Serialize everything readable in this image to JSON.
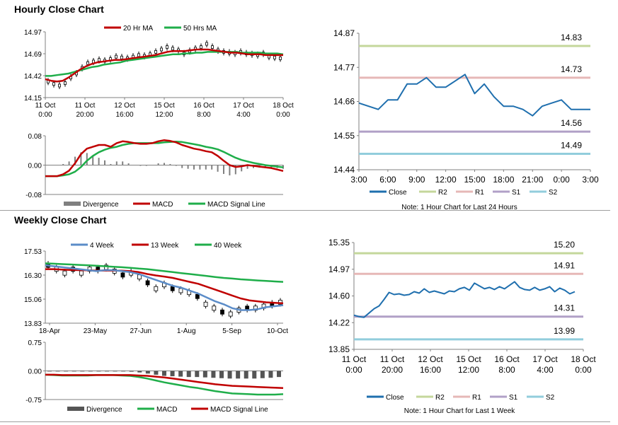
{
  "sections": {
    "hourly_title": "Hourly Close Chart",
    "weekly_title": "Weekly Close Chart"
  },
  "colors": {
    "close": "#1F6FAE",
    "ma_red": "#C00000",
    "ma_green": "#1FAE4A",
    "r2": "#C4D79B",
    "r1": "#E6B8B7",
    "s1": "#B1A0C7",
    "s2": "#92CDDC",
    "divergence": "#808080",
    "gray_candle": "#000000",
    "axis": "#808080",
    "divider": "#9E9E9E"
  },
  "chart_data": [
    {
      "id": "hourly_price",
      "type": "line",
      "legend": [
        "20 Hr MA",
        "50 Hrs MA"
      ],
      "ylim": [
        14.15,
        14.97
      ],
      "yticks": [
        "14.97",
        "14.69",
        "14.42",
        "14.15"
      ],
      "xticks": [
        [
          "11 Oct",
          "0:00"
        ],
        [
          "11 Oct",
          "20:00"
        ],
        [
          "12 Oct",
          "16:00"
        ],
        [
          "15 Oct",
          "12:00"
        ],
        [
          "16 Oct",
          "8:00"
        ],
        [
          "17 Oct",
          "4:00"
        ],
        [
          "18 Oct",
          "0:00"
        ]
      ],
      "series": [
        {
          "name": "Close",
          "values": [
            14.35,
            14.32,
            14.3,
            14.33,
            14.4,
            14.45,
            14.52,
            14.58,
            14.6,
            14.62,
            14.61,
            14.63,
            14.66,
            14.65,
            14.64,
            14.66,
            14.68,
            14.67,
            14.69,
            14.72,
            14.75,
            14.78,
            14.76,
            14.74,
            14.7,
            14.73,
            14.76,
            14.78,
            14.82,
            14.78,
            14.74,
            14.72,
            14.71,
            14.7,
            14.72,
            14.7,
            14.69,
            14.68,
            14.7,
            14.66,
            14.65,
            14.64
          ]
        },
        {
          "name": "20 Hr MA",
          "values": [
            14.38,
            14.36,
            14.35,
            14.36,
            14.4,
            14.45,
            14.5,
            14.54,
            14.57,
            14.59,
            14.6,
            14.61,
            14.62,
            14.62,
            14.63,
            14.64,
            14.65,
            14.66,
            14.67,
            14.68,
            14.7,
            14.72,
            14.73,
            14.73,
            14.73,
            14.74,
            14.75,
            14.75,
            14.75,
            14.74,
            14.73,
            14.72,
            14.71,
            14.71,
            14.7,
            14.69,
            14.69,
            14.69,
            14.68,
            14.68,
            14.68,
            14.68
          ]
        },
        {
          "name": "50 Hrs MA",
          "values": [
            14.42,
            14.42,
            14.43,
            14.44,
            14.45,
            14.47,
            14.49,
            14.51,
            14.53,
            14.54,
            14.56,
            14.57,
            14.58,
            14.59,
            14.61,
            14.62,
            14.63,
            14.64,
            14.65,
            14.66,
            14.67,
            14.68,
            14.69,
            14.69,
            14.7,
            14.7,
            14.71,
            14.71,
            14.72,
            14.72,
            14.72,
            14.72,
            14.72,
            14.72,
            14.71,
            14.71,
            14.71,
            14.71,
            14.7,
            14.7,
            14.7,
            14.69
          ]
        }
      ]
    },
    {
      "id": "hourly_macd",
      "type": "line",
      "legend": [
        "Divergence",
        "MACD",
        "MACD Signal Line"
      ],
      "ylim": [
        -0.08,
        0.08
      ],
      "yticks": [
        "0.08",
        "0.00",
        "-0.08"
      ],
      "series": [
        {
          "name": "MACD",
          "values": [
            -0.03,
            -0.03,
            -0.03,
            -0.025,
            -0.015,
            0.005,
            0.03,
            0.045,
            0.05,
            0.055,
            0.055,
            0.05,
            0.06,
            0.065,
            0.063,
            0.06,
            0.058,
            0.058,
            0.06,
            0.065,
            0.068,
            0.066,
            0.062,
            0.055,
            0.05,
            0.045,
            0.042,
            0.038,
            0.035,
            0.025,
            0.012,
            0.0,
            -0.005,
            -0.003,
            0.0,
            -0.002,
            -0.004,
            -0.006,
            -0.008,
            -0.012,
            -0.016
          ]
        },
        {
          "name": "MACD Signal Line",
          "values": [
            -0.03,
            -0.03,
            -0.03,
            -0.028,
            -0.025,
            -0.018,
            -0.005,
            0.012,
            0.025,
            0.035,
            0.042,
            0.047,
            0.05,
            0.055,
            0.058,
            0.06,
            0.06,
            0.06,
            0.06,
            0.06,
            0.062,
            0.063,
            0.064,
            0.063,
            0.06,
            0.057,
            0.054,
            0.05,
            0.047,
            0.043,
            0.036,
            0.028,
            0.02,
            0.014,
            0.01,
            0.006,
            0.003,
            0.0,
            -0.002,
            -0.004,
            -0.006
          ]
        },
        {
          "name": "Divergence",
          "values": [
            0.0,
            0.0,
            0.0,
            0.003,
            0.01,
            0.023,
            0.035,
            0.033,
            0.025,
            0.02,
            0.013,
            0.003,
            0.01,
            0.01,
            0.005,
            0.0,
            -0.002,
            -0.002,
            0.0,
            0.005,
            0.006,
            0.003,
            -0.002,
            -0.008,
            -0.01,
            -0.012,
            -0.012,
            -0.012,
            -0.012,
            -0.018,
            -0.024,
            -0.028,
            -0.025,
            -0.017,
            -0.01,
            -0.008,
            -0.007,
            -0.006,
            -0.006,
            -0.008,
            -0.01
          ]
        }
      ]
    },
    {
      "id": "hourly_pivot",
      "type": "line",
      "legend": [
        "Close",
        "R2",
        "R1",
        "S1",
        "S2"
      ],
      "note": "Note: 1 Hour Chart for Last 24 Hours",
      "ylim": [
        14.44,
        14.87
      ],
      "yticks": [
        "14.87",
        "14.77",
        "14.66",
        "14.55",
        "14.44"
      ],
      "xticks": [
        "3:00",
        "6:00",
        "9:00",
        "12:00",
        "15:00",
        "18:00",
        "21:00",
        "0:00",
        "3:00"
      ],
      "levels": [
        {
          "name": "R2",
          "value": 14.83,
          "label": "14.83"
        },
        {
          "name": "R1",
          "value": 14.73,
          "label": "14.73"
        },
        {
          "name": "S1",
          "value": 14.56,
          "label": "14.56"
        },
        {
          "name": "S2",
          "value": 14.49,
          "label": "14.49"
        }
      ],
      "x": [
        0,
        2,
        3,
        4,
        5,
        6,
        7,
        8,
        9,
        10,
        11,
        12,
        13,
        14,
        15,
        16,
        17,
        18,
        19,
        20,
        21,
        22,
        23,
        24
      ],
      "values": [
        14.65,
        14.63,
        14.66,
        14.66,
        14.71,
        14.71,
        14.73,
        14.7,
        14.7,
        14.72,
        14.74,
        14.68,
        14.71,
        14.67,
        14.64,
        14.64,
        14.63,
        14.61,
        14.64,
        14.65,
        14.66,
        14.63,
        14.63,
        14.63
      ]
    },
    {
      "id": "weekly_price",
      "type": "line",
      "legend": [
        "4 Week",
        "13 Week",
        "40 Week"
      ],
      "ylim": [
        13.83,
        17.53
      ],
      "yticks": [
        "17.53",
        "16.30",
        "15.06",
        "13.83"
      ],
      "xticks": [
        "18-Apr",
        "23-May",
        "27-Jun",
        "1-Aug",
        "5-Sep",
        "10-Oct"
      ],
      "series": [
        {
          "name": "Close",
          "values": [
            16.8,
            16.6,
            16.4,
            16.6,
            16.4,
            16.6,
            16.6,
            16.7,
            16.5,
            16.3,
            16.4,
            16.2,
            15.9,
            15.6,
            15.8,
            15.6,
            15.5,
            15.4,
            15.2,
            14.8,
            14.6,
            14.4,
            14.3,
            14.5,
            14.6,
            14.6,
            14.7,
            14.8,
            14.9
          ]
        },
        {
          "name": "4 Week",
          "values": [
            16.8,
            16.75,
            16.7,
            16.65,
            16.6,
            16.55,
            16.5,
            16.55,
            16.55,
            16.5,
            16.45,
            16.35,
            16.2,
            16.05,
            15.9,
            15.75,
            15.65,
            15.5,
            15.35,
            15.15,
            14.95,
            14.8,
            14.6,
            14.5,
            14.5,
            14.55,
            14.65,
            14.7,
            14.75
          ]
        },
        {
          "name": "13 Week",
          "values": [
            16.6,
            16.6,
            16.58,
            16.56,
            16.55,
            16.54,
            16.53,
            16.53,
            16.53,
            16.52,
            16.5,
            16.45,
            16.35,
            16.28,
            16.22,
            16.15,
            16.05,
            15.95,
            15.85,
            15.7,
            15.55,
            15.4,
            15.25,
            15.1,
            15.0,
            14.95,
            14.9,
            14.87,
            14.85
          ]
        },
        {
          "name": "40 Week",
          "values": [
            16.9,
            16.88,
            16.86,
            16.84,
            16.82,
            16.8,
            16.78,
            16.75,
            16.72,
            16.7,
            16.67,
            16.63,
            16.6,
            16.55,
            16.5,
            16.45,
            16.4,
            16.35,
            16.3,
            16.25,
            16.2,
            16.15,
            16.12,
            16.08,
            16.05,
            16.02,
            16.0,
            15.97,
            15.95
          ]
        }
      ]
    },
    {
      "id": "weekly_macd",
      "type": "line",
      "legend": [
        "Divergence",
        "MACD",
        "MACD Signal Line"
      ],
      "ylim": [
        -0.75,
        0.75
      ],
      "yticks": [
        "0.75",
        "0.00",
        "-0.75"
      ],
      "series": [
        {
          "name": "MACD",
          "values": [
            -0.1,
            -0.11,
            -0.12,
            -0.12,
            -0.12,
            -0.12,
            -0.11,
            -0.11,
            -0.11,
            -0.12,
            -0.13,
            -0.16,
            -0.2,
            -0.25,
            -0.3,
            -0.34,
            -0.38,
            -0.42,
            -0.45,
            -0.49,
            -0.53,
            -0.56,
            -0.59,
            -0.6,
            -0.61,
            -0.62,
            -0.62,
            -0.62,
            -0.61
          ]
        },
        {
          "name": "MACD Signal Line",
          "values": [
            -0.1,
            -0.1,
            -0.11,
            -0.11,
            -0.11,
            -0.11,
            -0.11,
            -0.11,
            -0.11,
            -0.11,
            -0.11,
            -0.12,
            -0.13,
            -0.15,
            -0.17,
            -0.2,
            -0.23,
            -0.26,
            -0.29,
            -0.32,
            -0.35,
            -0.37,
            -0.39,
            -0.4,
            -0.41,
            -0.42,
            -0.43,
            -0.44,
            -0.45
          ]
        },
        {
          "name": "Divergence",
          "values": [
            0.0,
            -0.01,
            -0.01,
            -0.01,
            -0.01,
            -0.01,
            0.0,
            0.0,
            0.0,
            -0.01,
            -0.02,
            -0.04,
            -0.07,
            -0.1,
            -0.13,
            -0.14,
            -0.15,
            -0.16,
            -0.16,
            -0.17,
            -0.18,
            -0.19,
            -0.2,
            -0.2,
            -0.2,
            -0.2,
            -0.19,
            -0.18,
            -0.16
          ]
        }
      ]
    },
    {
      "id": "weekly_pivot",
      "type": "line",
      "legend": [
        "Close",
        "R2",
        "R1",
        "S1",
        "S2"
      ],
      "note": "Note: 1 Hour Chart for Last 1 Week",
      "ylim": [
        13.85,
        15.35
      ],
      "yticks": [
        "15.35",
        "14.97",
        "14.60",
        "14.22",
        "13.85"
      ],
      "xticks": [
        [
          "11 Oct",
          "0:00"
        ],
        [
          "11 Oct",
          "20:00"
        ],
        [
          "12 Oct",
          "16:00"
        ],
        [
          "15 Oct",
          "12:00"
        ],
        [
          "16 Oct",
          "8:00"
        ],
        [
          "17 Oct",
          "4:00"
        ],
        [
          "18 Oct",
          "0:00"
        ]
      ],
      "levels": [
        {
          "name": "R2",
          "value": 15.2,
          "label": "15.20"
        },
        {
          "name": "R1",
          "value": 14.91,
          "label": "14.91"
        },
        {
          "name": "S1",
          "value": 14.31,
          "label": "14.31"
        },
        {
          "name": "S2",
          "value": 13.99,
          "label": "13.99"
        }
      ],
      "values": [
        14.33,
        14.31,
        14.3,
        14.36,
        14.42,
        14.46,
        14.55,
        14.65,
        14.62,
        14.63,
        14.61,
        14.62,
        14.66,
        14.64,
        14.7,
        14.65,
        14.67,
        14.65,
        14.63,
        14.67,
        14.66,
        14.7,
        14.72,
        14.68,
        14.78,
        14.74,
        14.7,
        14.72,
        14.69,
        14.73,
        14.7,
        14.75,
        14.8,
        14.72,
        14.69,
        14.68,
        14.72,
        14.68,
        14.7,
        14.73,
        14.66,
        14.71,
        14.68,
        14.63,
        14.66
      ]
    }
  ]
}
